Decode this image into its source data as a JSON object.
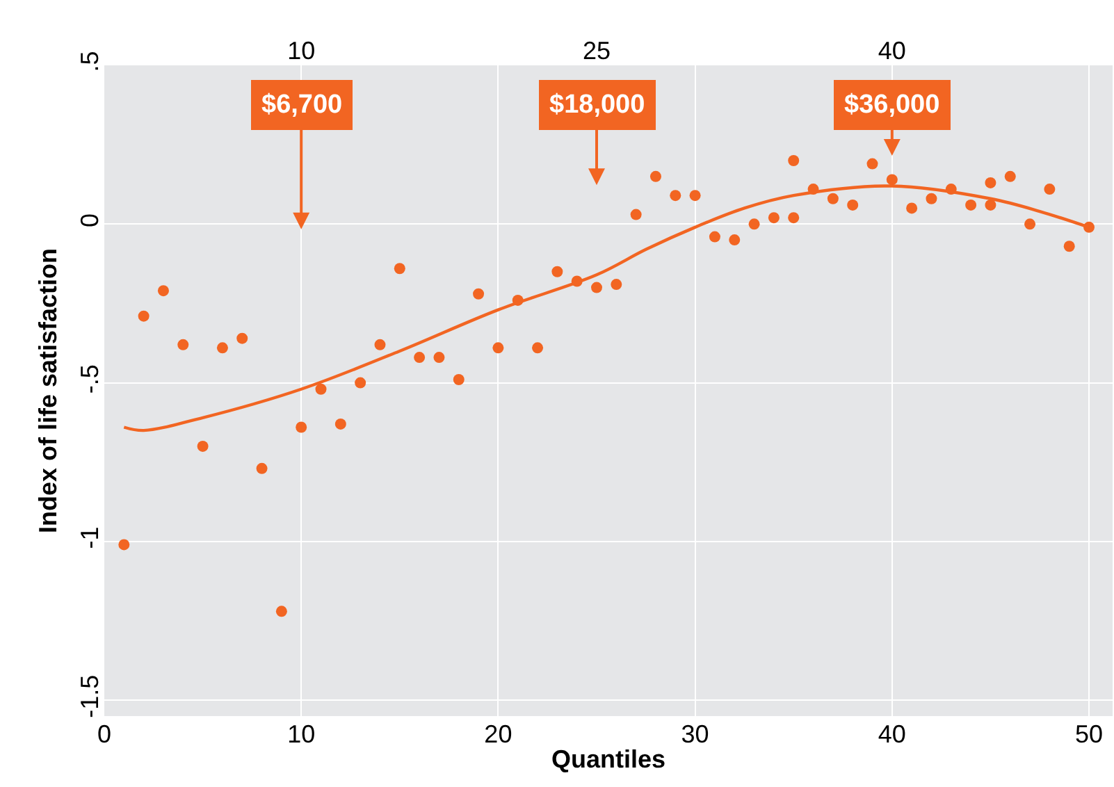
{
  "chart_data": {
    "type": "scatter",
    "xlabel": "Quantiles",
    "ylabel": "Index of life satisfaction",
    "grid": true,
    "xlim": [
      0,
      51.2
    ],
    "xticks": [
      0,
      10,
      20,
      30,
      40,
      50
    ],
    "x2lim": [
      0,
      51.2
    ],
    "x2ticks": [
      10,
      25,
      40
    ],
    "ylim": [
      -1.55,
      0.5
    ],
    "yticks": [
      {
        "value": 0.5,
        "label": ".5"
      },
      0,
      {
        "value": -0.5,
        "label": "-.5"
      },
      -1,
      {
        "value": -1.5,
        "label": "-1.5"
      }
    ],
    "series": [
      {
        "marker": "circle",
        "color": "#f26522",
        "x": [
          1,
          2,
          3,
          4,
          5,
          6,
          7,
          8,
          9,
          10,
          11,
          12,
          13,
          14,
          15,
          16,
          17,
          18,
          19,
          20,
          21,
          22,
          23,
          24,
          25,
          26,
          27,
          28,
          29,
          30,
          31,
          32,
          33,
          34,
          35,
          35,
          36,
          37,
          38,
          39,
          40,
          41,
          42,
          43,
          44,
          45,
          45,
          46,
          47,
          48,
          49,
          50
        ],
        "values": [
          -1.01,
          -0.29,
          -0.21,
          -0.38,
          -0.7,
          -0.39,
          -0.36,
          -0.77,
          -1.22,
          -0.64,
          -0.52,
          -0.63,
          -0.5,
          -0.38,
          -0.14,
          -0.42,
          -0.42,
          -0.49,
          -0.22,
          -0.39,
          -0.24,
          -0.39,
          -0.15,
          -0.18,
          -0.2,
          -0.19,
          0.03,
          0.15,
          0.09,
          0.09,
          -0.04,
          -0.05,
          0.0,
          0.02,
          0.2,
          0.02,
          0.11,
          0.08,
          0.06,
          0.19,
          0.14,
          0.05,
          0.08,
          0.11,
          0.06,
          0.13,
          0.06,
          0.15,
          0.0,
          0.11,
          -0.07,
          -0.01
        ]
      },
      {
        "type": "line",
        "marker": "none",
        "color": "#f26522",
        "x": [
          1,
          2,
          5,
          10,
          15,
          20,
          25,
          27.5,
          30,
          32.5,
          35,
          40,
          45,
          47.5,
          50
        ],
        "values": [
          -0.64,
          -0.65,
          -0.61,
          -0.52,
          -0.4,
          -0.27,
          -0.16,
          -0.08,
          -0.01,
          0.05,
          0.09,
          0.12,
          0.08,
          0.04,
          -0.01
        ]
      }
    ],
    "annotations": [
      "$6,700",
      "$18,000",
      "$36,000"
    ]
  }
}
